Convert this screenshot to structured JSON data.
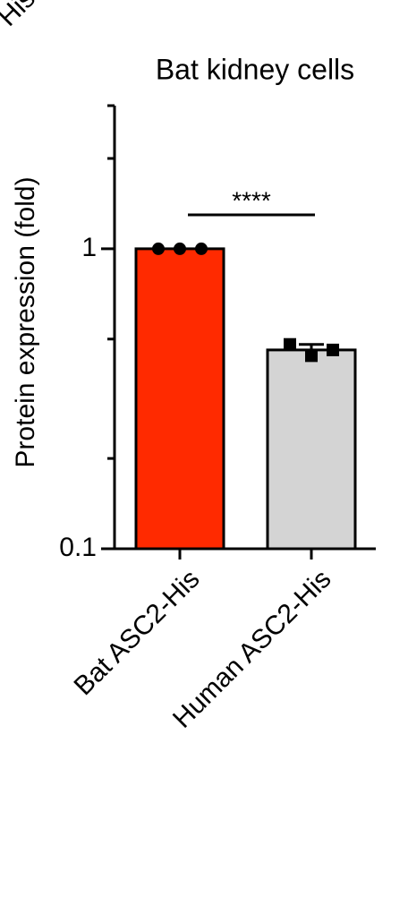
{
  "chart_data": {
    "type": "bar",
    "title": "Bat kidney cells",
    "ylabel": "Protein expression (fold)",
    "fragment_text": "His",
    "categories": [
      "Bat ASC2-His",
      "Human ASC2-His"
    ],
    "values": [
      1,
      0.46
    ],
    "errors": [
      0,
      0.02
    ],
    "colors": [
      "#ff2a00",
      "#d4d4d4"
    ],
    "points": [
      [
        1,
        1,
        1
      ],
      [
        0.48,
        0.44,
        0.46
      ]
    ],
    "markers": [
      "circle",
      "square"
    ],
    "significance": "****",
    "ylim": [
      0.1,
      3
    ],
    "log_scale": true,
    "yticks": [
      0.1,
      1
    ],
    "minor_yticks": [
      0.2,
      0.5,
      2,
      3
    ]
  }
}
